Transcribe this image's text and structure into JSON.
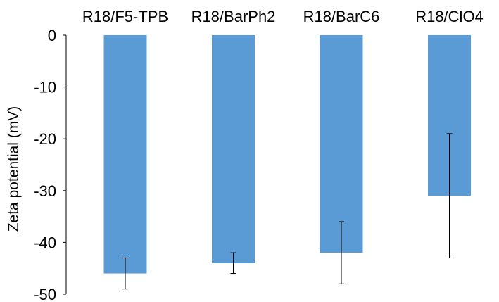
{
  "chart_data": {
    "type": "bar",
    "categories": [
      "R18/F5-TPB",
      "R18/BarPh2",
      "R18/BarC6",
      "R18/ClO4"
    ],
    "values": [
      -46,
      -44,
      -42,
      -31
    ],
    "error_low": [
      -49,
      -46,
      -48,
      -43
    ],
    "error_high": [
      -43,
      -42,
      -36,
      -19
    ],
    "ylabel": "Zeta potential (mV)",
    "ylim": [
      -50,
      0
    ],
    "yticks": [
      0,
      -10,
      -20,
      -30,
      -40,
      -50
    ],
    "ytick_labels": [
      "0",
      "-10",
      "-20",
      "-30",
      "-40",
      "-50"
    ],
    "category_axis_position": "top",
    "grid": false,
    "bar_color": "#5b9bd5",
    "errorbar_color": "#000000"
  }
}
